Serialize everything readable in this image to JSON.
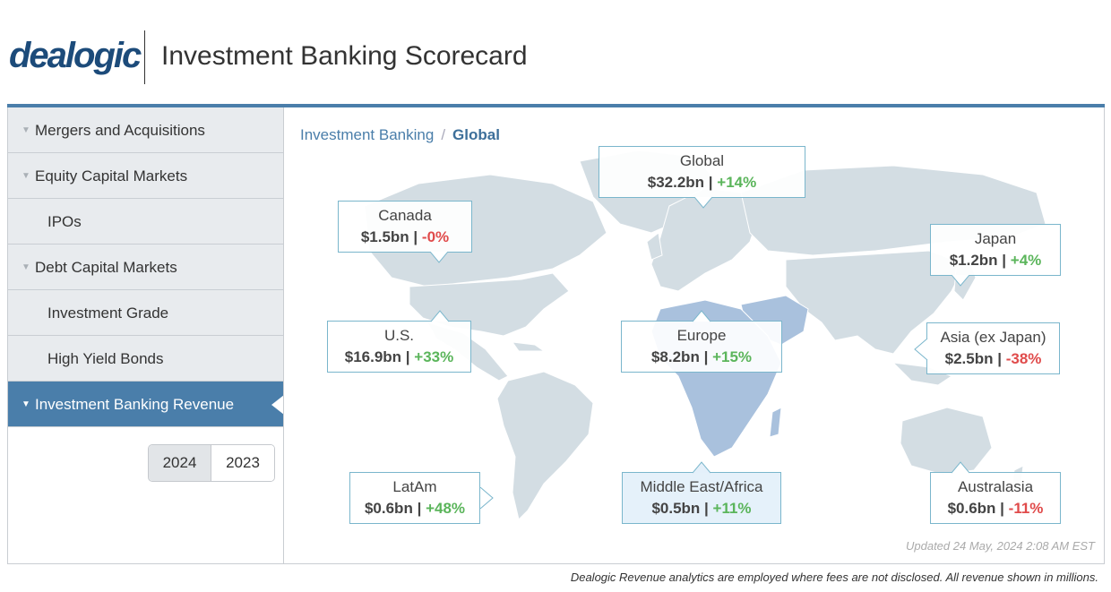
{
  "header": {
    "logo": "dealogic",
    "title": "Investment Banking Scorecard"
  },
  "sidebar": {
    "items": [
      {
        "label": "Mergers and Acquisitions"
      },
      {
        "label": "Equity Capital Markets"
      },
      {
        "label": "IPOs"
      },
      {
        "label": "Debt Capital Markets"
      },
      {
        "label": "Investment Grade"
      },
      {
        "label": "High Yield Bonds"
      },
      {
        "label": "Investment Banking Revenue"
      }
    ],
    "years": [
      "2024",
      "2023"
    ],
    "selected_year": "2024"
  },
  "breadcrumb": {
    "parent": "Investment Banking",
    "separator": "/",
    "current": "Global"
  },
  "regions": {
    "global": {
      "name": "Global",
      "value": "$32.2bn",
      "sep": "|",
      "change": "+14%"
    },
    "canada": {
      "name": "Canada",
      "value": "$1.5bn",
      "sep": "|",
      "change": "-0%"
    },
    "japan": {
      "name": "Japan",
      "value": "$1.2bn",
      "sep": "|",
      "change": "+4%"
    },
    "us": {
      "name": "U.S.",
      "value": "$16.9bn",
      "sep": "|",
      "change": "+33%"
    },
    "europe": {
      "name": "Europe",
      "value": "$8.2bn",
      "sep": "|",
      "change": "+15%"
    },
    "asia": {
      "name": "Asia (ex Japan)",
      "value": "$2.5bn",
      "sep": "|",
      "change": "-38%"
    },
    "latam": {
      "name": "LatAm",
      "value": "$0.6bn",
      "sep": "|",
      "change": "+48%"
    },
    "mea": {
      "name": "Middle East/Africa",
      "value": "$0.5bn",
      "sep": "|",
      "change": "+11%"
    },
    "australasia": {
      "name": "Australasia",
      "value": "$0.6bn",
      "sep": "|",
      "change": "-11%"
    }
  },
  "colors": {
    "accent": "#4a7eaa",
    "positive": "#5bb55b",
    "negative": "#e04b4b",
    "land": "#d3dde3",
    "highlight_land": "#a9c1dd"
  },
  "updated": "Updated 24 May, 2024 2:08 AM EST",
  "footnote": "Dealogic Revenue analytics are employed where fees are not disclosed. All revenue shown in millions."
}
